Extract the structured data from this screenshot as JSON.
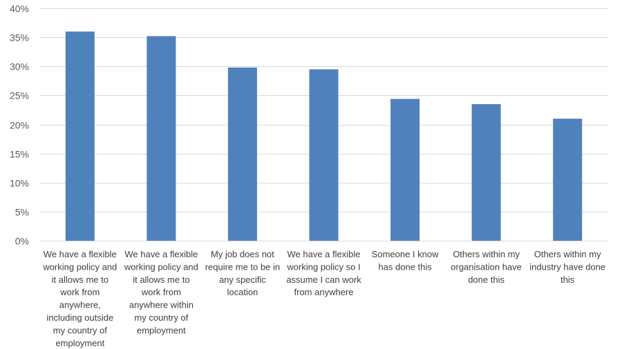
{
  "chart_data": {
    "type": "bar",
    "title": "",
    "xlabel": "",
    "ylabel": "",
    "ylim": [
      0,
      40
    ],
    "y_ticks": [
      0,
      5,
      10,
      15,
      20,
      25,
      30,
      35,
      40
    ],
    "y_tick_labels": [
      "0%",
      "5%",
      "10%",
      "15%",
      "20%",
      "25%",
      "30%",
      "35%",
      "40%"
    ],
    "grid": true,
    "bar_color": "#4f81bd",
    "gridline_color": "#d9d9d9",
    "categories": [
      [
        "We have a flexible",
        "working policy and",
        "it allows me to",
        "work from",
        "anywhere,",
        "including outside",
        "my country of",
        "employment"
      ],
      [
        "We have a flexible",
        "working policy and",
        "it allows me to",
        "work from",
        "anywhere within",
        "my country of",
        "employment"
      ],
      [
        "My job does not",
        "require me to be in",
        "any specific",
        "location"
      ],
      [
        "We have a flexible",
        "working policy so I",
        "assume I can work",
        "from anywhere"
      ],
      [
        "Someone I know",
        "has done this"
      ],
      [
        "Others within my",
        "organisation have",
        "done this"
      ],
      [
        "Others within my",
        "industry have done",
        "this"
      ]
    ],
    "values": [
      36.0,
      35.2,
      29.8,
      29.5,
      24.4,
      23.5,
      21.0
    ],
    "unit": "%"
  }
}
